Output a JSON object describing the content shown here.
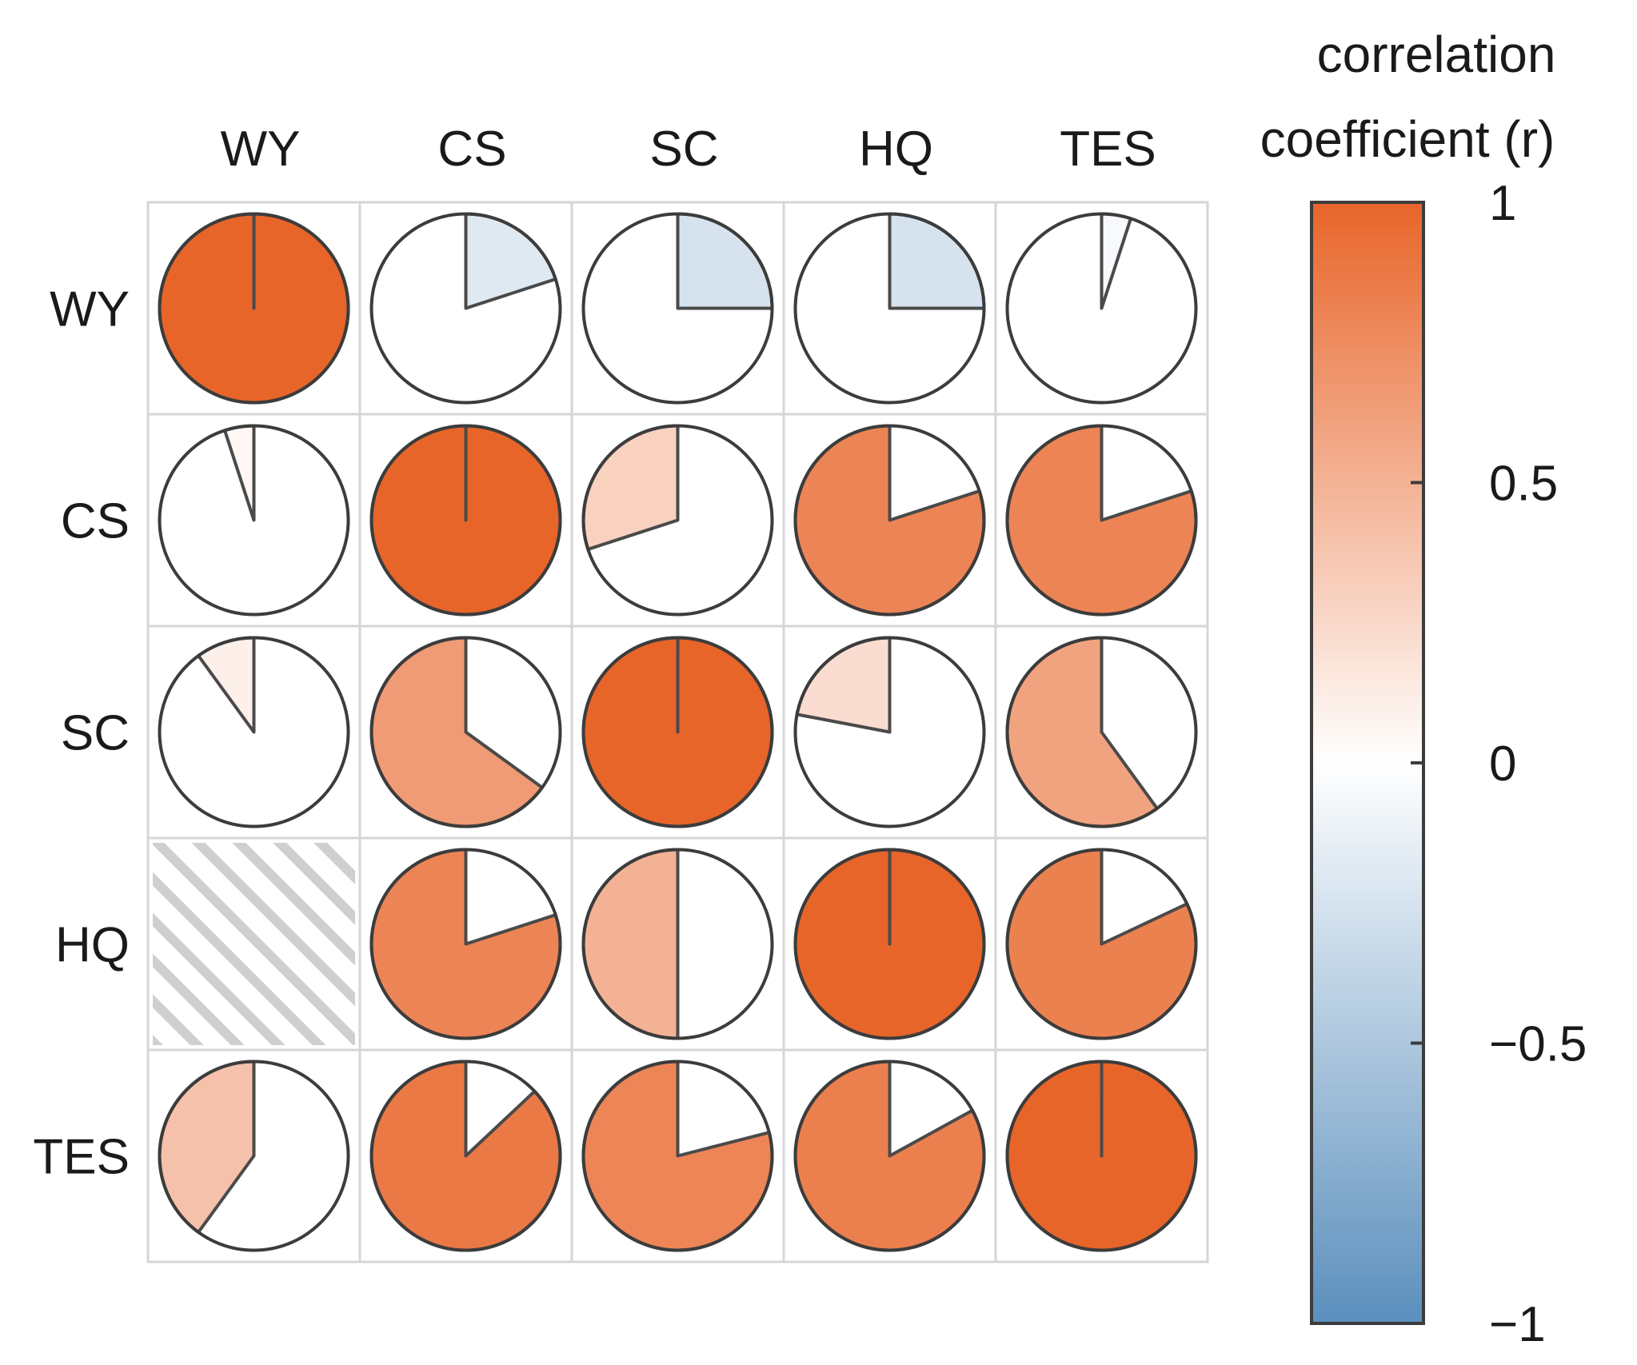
{
  "chart_data": {
    "type": "heatmap",
    "subtype": "pie-correlation-matrix",
    "variables": [
      "WY",
      "CS",
      "SC",
      "HQ",
      "TES"
    ],
    "matrix": [
      [
        1.0,
        -0.2,
        -0.25,
        -0.25,
        -0.05
      ],
      [
        0.05,
        1.0,
        0.3,
        0.8,
        0.8
      ],
      [
        0.1,
        0.65,
        1.0,
        0.22,
        0.6
      ],
      [
        null,
        0.8,
        0.5,
        1.0,
        0.82
      ],
      [
        0.4,
        0.87,
        0.79,
        0.83,
        1.0
      ]
    ],
    "missing_cell_note": "hatched",
    "colorbar": {
      "title_line1": "correlation",
      "title_line2": "coefficient (r)",
      "range": [
        -1,
        1
      ],
      "ticks": [
        1,
        0.5,
        0,
        -0.5,
        -1
      ],
      "tick_labels": [
        "1",
        "0.5",
        "0",
        "−0.5",
        "−1"
      ],
      "color_high": "#E8652A",
      "color_mid": "#FFFFFF",
      "color_low": "#5B8FBD"
    }
  }
}
